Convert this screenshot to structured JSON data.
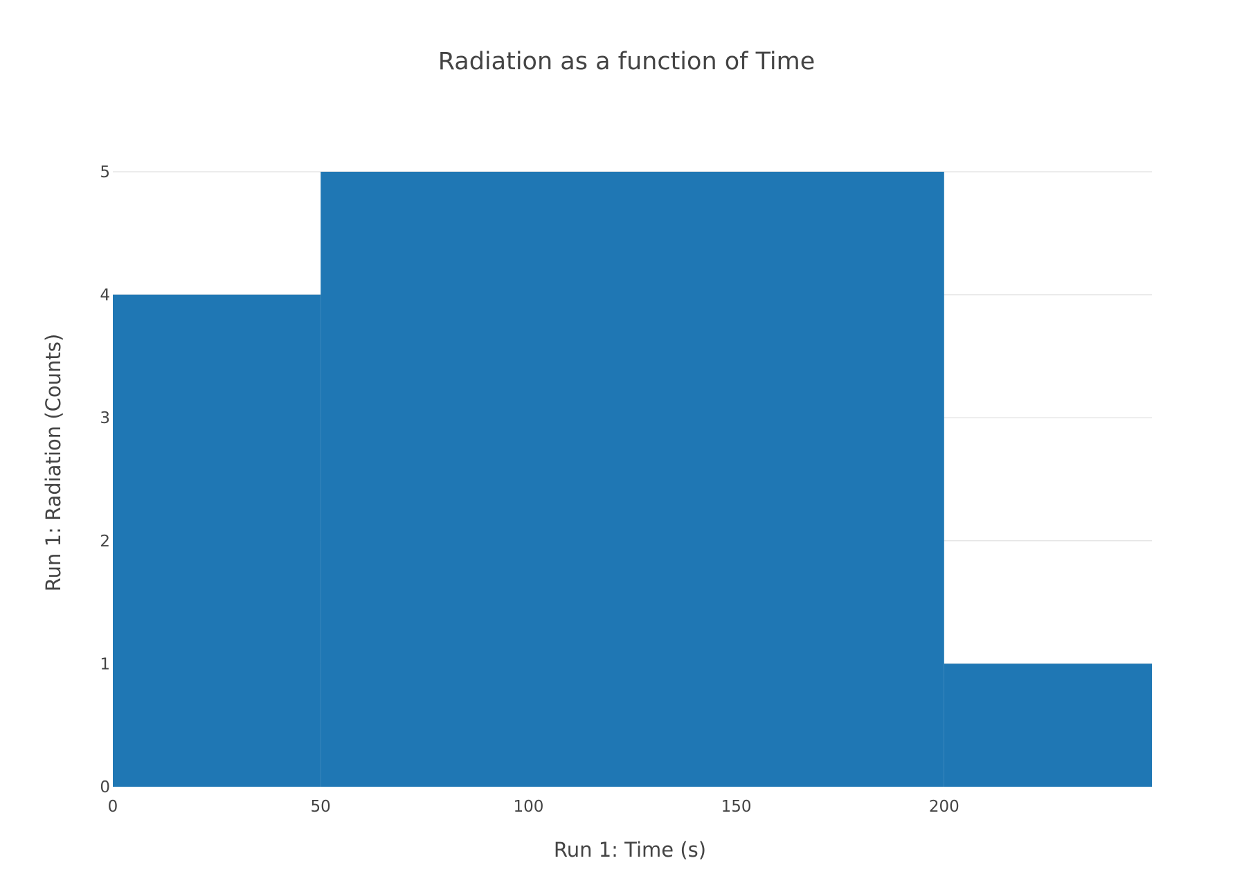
{
  "chart_data": {
    "type": "bar",
    "title": "Radiation as a function of Time",
    "xlabel": "Run 1: Time (s)",
    "ylabel": "Run 1: Radiation (Counts)",
    "bins": [
      {
        "x0": 0,
        "x1": 50,
        "value": 4
      },
      {
        "x0": 50,
        "x1": 200,
        "value": 5
      },
      {
        "x0": 200,
        "x1": 250,
        "value": 1
      }
    ],
    "xlim": [
      0,
      250
    ],
    "ylim": [
      0,
      5
    ],
    "xticks": [
      0,
      50,
      100,
      150,
      200
    ],
    "xtick_labels": [
      "0",
      "50",
      "100",
      "150",
      "200"
    ],
    "yticks": [
      0,
      1,
      2,
      3,
      4,
      5
    ],
    "ytick_labels": [
      "0",
      "1",
      "2",
      "3",
      "4",
      "5"
    ],
    "grid": true,
    "bar_color": "#1f77b4",
    "text_color": "#444444",
    "grid_color": "#e6e6e6"
  }
}
